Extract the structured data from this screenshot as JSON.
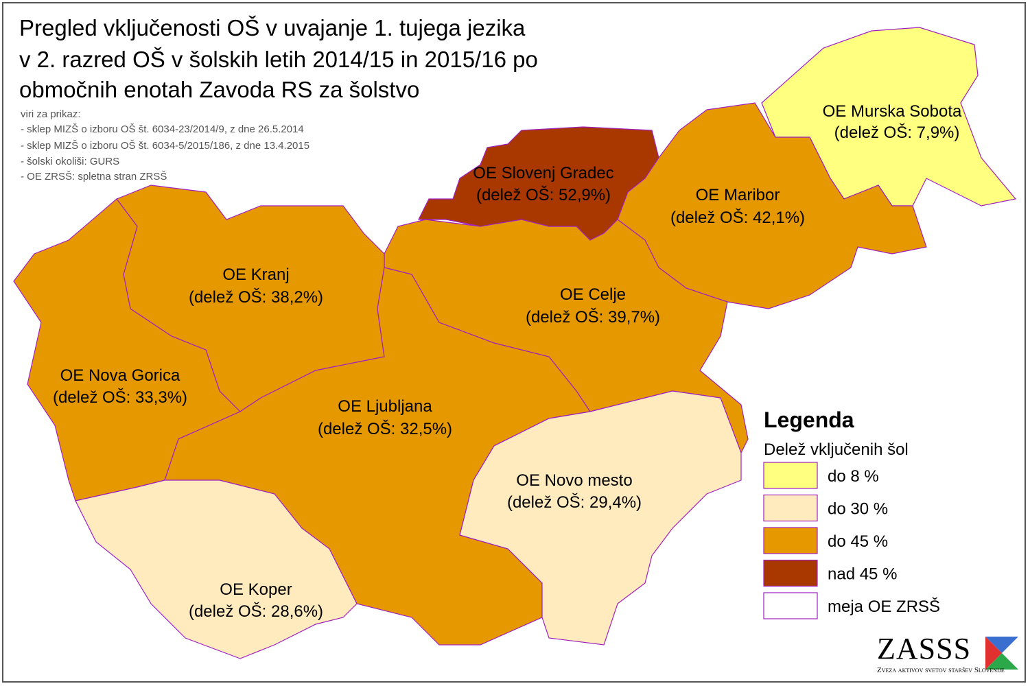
{
  "title": [
    "Pregled vključenosti OŠ v uvajanje 1. tujega jezika",
    "v 2. razred OŠ v šolskih letih 2014/15 in 2015/16 po",
    "območnih enotah Zavoda RS za šolstvo"
  ],
  "sources": {
    "heading": "viri za prikaz:",
    "items": [
      "- sklep MIZŠ o izboru OŠ št. 6034-23/2014/9, z dne 26.5.2014",
      "- sklep MIZŠ o izboru OŠ št. 6034-5/2015/186, z dne 13.4.2015",
      "- šolski okoliši: GURS",
      "- OE ZRSŠ: spletna stran ZRSŠ"
    ]
  },
  "regions": [
    {
      "name": "OE Murska Sobota",
      "label": "(delež OŠ: 7,9%)",
      "color": "#ffff80"
    },
    {
      "name": "OE Slovenj Gradec",
      "label": "(delež OŠ: 52,9%)",
      "color": "#a83800"
    },
    {
      "name": "OE Maribor",
      "label": "(delež OŠ: 42,1%)",
      "color": "#e69800"
    },
    {
      "name": "OE Kranj",
      "label": "(delež OŠ: 38,2%)",
      "color": "#e69800"
    },
    {
      "name": "OE Celje",
      "label": "(delež OŠ: 39,7%)",
      "color": "#e69800"
    },
    {
      "name": "OE Nova Gorica",
      "label": "(delež OŠ: 33,3%)",
      "color": "#e69800"
    },
    {
      "name": "OE Ljubljana",
      "label": "(delež OŠ: 32,5%)",
      "color": "#e69800"
    },
    {
      "name": "OE Novo mesto",
      "label": "(delež OŠ: 29,4%)",
      "color": "#ffebbe"
    },
    {
      "name": "OE Koper",
      "label": "(delež OŠ: 28,6%)",
      "color": "#ffebbe"
    }
  ],
  "legend": {
    "title": "Legenda",
    "subtitle": "Delež vključenih šol",
    "items": [
      {
        "label": "do 8 %",
        "color": "#ffff80"
      },
      {
        "label": "do 30 %",
        "color": "#ffebbe"
      },
      {
        "label": "do 45 %",
        "color": "#e69800"
      },
      {
        "label": "nad 45 %",
        "color": "#a83800"
      },
      {
        "label": "meja OE ZRSŠ",
        "color": "#ffffff"
      }
    ]
  },
  "logo": {
    "text": "ZASSS",
    "subtitle": "Zveza aktivov svetov staršev Slovenije"
  }
}
